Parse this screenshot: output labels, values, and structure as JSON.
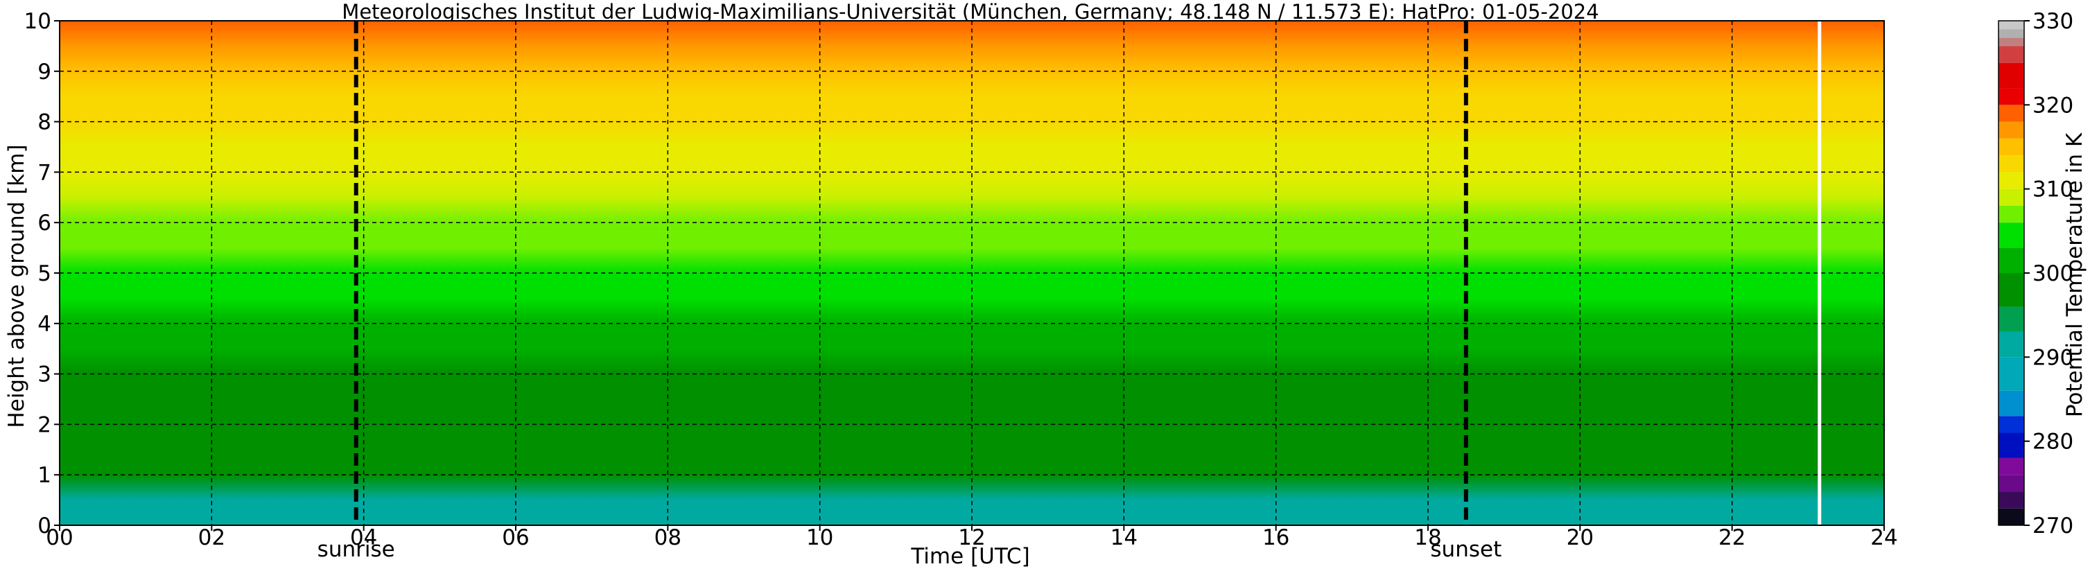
{
  "chart_data": {
    "type": "heatmap",
    "title": "Meteorologisches Institut der Ludwig-Maximilians-Universität (München, Germany; 48.148 N / 11.573 E):    HatPro: 01-05-2024",
    "xlabel": "Time [UTC]",
    "ylabel": "Height above ground [km]",
    "xlim": [
      0,
      24
    ],
    "ylim": [
      0,
      10
    ],
    "x_ticks": [
      "00",
      "02",
      "04",
      "06",
      "08",
      "10",
      "12",
      "14",
      "16",
      "18",
      "20",
      "22",
      "24"
    ],
    "y_ticks": [
      "0",
      "1",
      "2",
      "3",
      "4",
      "5",
      "6",
      "7",
      "8",
      "9",
      "10"
    ],
    "grid": true,
    "colorbar": {
      "label": "Potential Temperature in K",
      "range": [
        270,
        330
      ],
      "ticks": [
        "270",
        "280",
        "290",
        "300",
        "310",
        "320",
        "330"
      ],
      "bands": [
        {
          "from": 270,
          "to": 272,
          "color": "#0a0a1a"
        },
        {
          "from": 272,
          "to": 274,
          "color": "#3a0a5a"
        },
        {
          "from": 274,
          "to": 276,
          "color": "#6a0a8a"
        },
        {
          "from": 276,
          "to": 278,
          "color": "#800a9a"
        },
        {
          "from": 278,
          "to": 281,
          "color": "#0010c0"
        },
        {
          "from": 281,
          "to": 283,
          "color": "#0030d8"
        },
        {
          "from": 283,
          "to": 286,
          "color": "#0090d0"
        },
        {
          "from": 286,
          "to": 290,
          "color": "#00a8b8"
        },
        {
          "from": 290,
          "to": 293,
          "color": "#00aaa0"
        },
        {
          "from": 293,
          "to": 296,
          "color": "#00a050"
        },
        {
          "from": 296,
          "to": 300,
          "color": "#009000"
        },
        {
          "from": 300,
          "to": 303,
          "color": "#00b000"
        },
        {
          "from": 303,
          "to": 306,
          "color": "#00e000"
        },
        {
          "from": 306,
          "to": 308,
          "color": "#70f000"
        },
        {
          "from": 308,
          "to": 310,
          "color": "#c8f000"
        },
        {
          "from": 310,
          "to": 312,
          "color": "#e8ec00"
        },
        {
          "from": 312,
          "to": 314,
          "color": "#f8d800"
        },
        {
          "from": 314,
          "to": 316,
          "color": "#ffc000"
        },
        {
          "from": 316,
          "to": 318,
          "color": "#ff9800"
        },
        {
          "from": 318,
          "to": 320,
          "color": "#ff6000"
        },
        {
          "from": 320,
          "to": 322,
          "color": "#e80000"
        },
        {
          "from": 322,
          "to": 325,
          "color": "#e00000"
        },
        {
          "from": 325,
          "to": 327,
          "color": "#d04040"
        },
        {
          "from": 327,
          "to": 328,
          "color": "#c08080"
        },
        {
          "from": 328,
          "to": 329,
          "color": "#b0b0b0"
        },
        {
          "from": 329,
          "to": 330,
          "color": "#c8c8c8"
        }
      ]
    },
    "profile": [
      {
        "height": 0.0,
        "theta": 290.5
      },
      {
        "height": 0.5,
        "theta": 292.5
      },
      {
        "height": 1.0,
        "theta": 296.0
      },
      {
        "height": 1.5,
        "theta": 297.5
      },
      {
        "height": 2.0,
        "theta": 298.0
      },
      {
        "height": 2.5,
        "theta": 298.5
      },
      {
        "height": 3.0,
        "theta": 299.0
      },
      {
        "height": 3.5,
        "theta": 300.5
      },
      {
        "height": 4.0,
        "theta": 302.0
      },
      {
        "height": 4.5,
        "theta": 303.5
      },
      {
        "height": 5.0,
        "theta": 305.0
      },
      {
        "height": 5.5,
        "theta": 306.0
      },
      {
        "height": 6.0,
        "theta": 307.5
      },
      {
        "height": 6.5,
        "theta": 308.5
      },
      {
        "height": 7.0,
        "theta": 310.0
      },
      {
        "height": 7.5,
        "theta": 311.0
      },
      {
        "height": 8.0,
        "theta": 312.5
      },
      {
        "height": 8.5,
        "theta": 313.5
      },
      {
        "height": 9.0,
        "theta": 314.5
      },
      {
        "height": 9.5,
        "theta": 316.0
      },
      {
        "height": 10.0,
        "theta": 318.5
      }
    ],
    "data_gap_time": 23.15,
    "markers": [
      {
        "label": "sunrise",
        "time": 3.9
      },
      {
        "label": "sunset",
        "time": 18.5
      }
    ]
  }
}
